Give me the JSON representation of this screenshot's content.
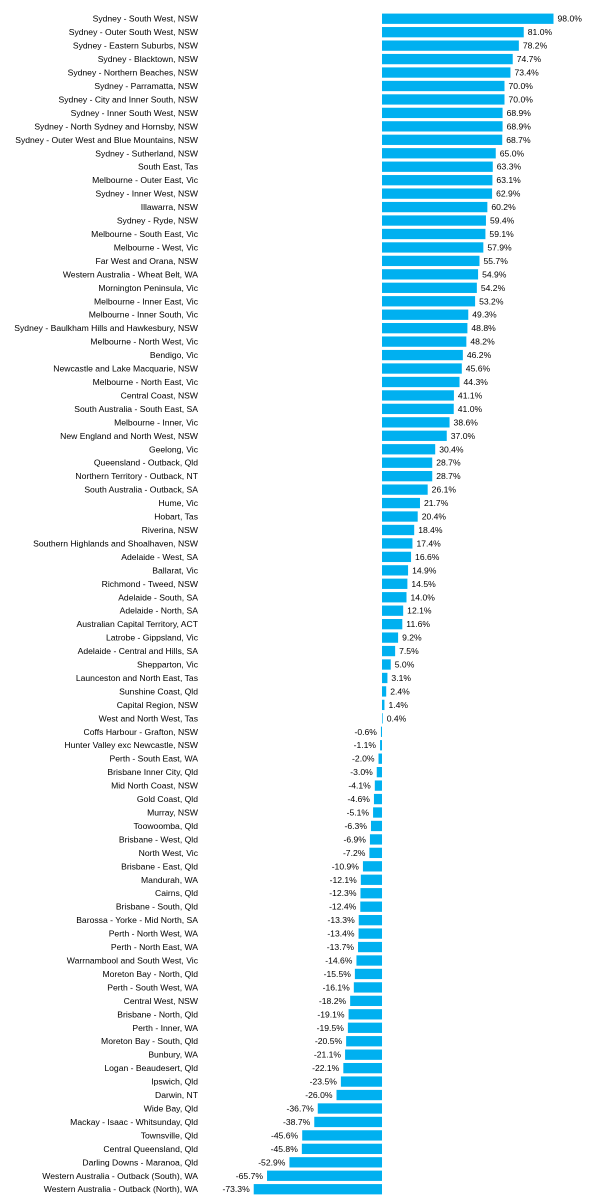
{
  "chart_data": {
    "type": "bar",
    "orientation": "horizontal",
    "bar_color": "#00B0F0",
    "value_suffix": "%",
    "grid": false,
    "legend": "none",
    "xlim": [
      -73.3,
      98.0
    ],
    "categories": [
      "Sydney - South West, NSW",
      "Sydney - Outer South West, NSW",
      "Sydney - Eastern Suburbs, NSW",
      "Sydney - Blacktown, NSW",
      "Sydney - Northern Beaches, NSW",
      "Sydney - Parramatta, NSW",
      "Sydney - City and Inner South, NSW",
      "Sydney - Inner South West, NSW",
      "Sydney - North Sydney and Hornsby, NSW",
      "Sydney - Outer West and Blue Mountains, NSW",
      "Sydney - Sutherland, NSW",
      "South East, Tas",
      "Melbourne - Outer East, Vic",
      "Sydney - Inner West, NSW",
      "Illawarra, NSW",
      "Sydney - Ryde, NSW",
      "Melbourne - South East, Vic",
      "Melbourne - West, Vic",
      "Far West and Orana, NSW",
      "Western Australia - Wheat Belt, WA",
      "Mornington Peninsula, Vic",
      "Melbourne - Inner East, Vic",
      "Melbourne - Inner South, Vic",
      "Sydney - Baulkham Hills and Hawkesbury, NSW",
      "Melbourne - North West, Vic",
      "Bendigo, Vic",
      "Newcastle and Lake Macquarie, NSW",
      "Melbourne - North East, Vic",
      "Central Coast, NSW",
      "South Australia - South East, SA",
      "Melbourne - Inner, Vic",
      "New England and North West, NSW",
      "Geelong, Vic",
      "Queensland - Outback, Qld",
      "Northern Territory - Outback, NT",
      "South Australia - Outback, SA",
      "Hume, Vic",
      "Hobart, Tas",
      "Riverina, NSW",
      "Southern Highlands and Shoalhaven, NSW",
      "Adelaide - West, SA",
      "Ballarat, Vic",
      "Richmond - Tweed, NSW",
      "Adelaide - South, SA",
      "Adelaide - North, SA",
      "Australian Capital Territory, ACT",
      "Latrobe - Gippsland, Vic",
      "Adelaide - Central and Hills, SA",
      "Shepparton, Vic",
      "Launceston and North East, Tas",
      "Sunshine Coast, Qld",
      "Capital Region, NSW",
      "West and North West, Tas",
      "Coffs Harbour - Grafton, NSW",
      "Hunter Valley exc Newcastle, NSW",
      "Perth - South East, WA",
      "Brisbane Inner City, Qld",
      "Mid North Coast, NSW",
      "Gold Coast, Qld",
      "Murray, NSW",
      "Toowoomba, Qld",
      "Brisbane - West, Qld",
      "North West, Vic",
      "Brisbane - East, Qld",
      "Mandurah, WA",
      "Cairns, Qld",
      "Brisbane - South, Qld",
      "Barossa - Yorke - Mid North, SA",
      "Perth - North West, WA",
      "Perth - North East, WA",
      "Warrnambool and South West, Vic",
      "Moreton Bay - North, Qld",
      "Perth - South West, WA",
      "Central West, NSW",
      "Brisbane - North, Qld",
      "Perth - Inner, WA",
      "Moreton Bay - South, Qld",
      "Bunbury, WA",
      "Logan - Beaudesert, Qld",
      "Ipswich, Qld",
      "Darwin, NT",
      "Wide Bay, Qld",
      "Mackay - Isaac - Whitsunday, Qld",
      "Townsville, Qld",
      "Central Queensland, Qld",
      "Darling Downs - Maranoa, Qld",
      "Western Australia - Outback (South), WA",
      "Western Australia - Outback (North), WA"
    ],
    "values": [
      98.0,
      81.0,
      78.2,
      74.7,
      73.4,
      70.0,
      70.0,
      68.9,
      68.9,
      68.7,
      65.0,
      63.3,
      63.1,
      62.9,
      60.2,
      59.4,
      59.1,
      57.9,
      55.7,
      54.9,
      54.2,
      53.2,
      49.3,
      48.8,
      48.2,
      46.2,
      45.6,
      44.3,
      41.1,
      41.0,
      38.6,
      37.0,
      30.4,
      28.7,
      28.7,
      26.1,
      21.7,
      20.4,
      18.4,
      17.4,
      16.6,
      14.9,
      14.5,
      14.0,
      12.1,
      11.6,
      9.2,
      7.5,
      5.0,
      3.1,
      2.4,
      1.4,
      0.4,
      -0.6,
      -1.1,
      -2.0,
      -3.0,
      -4.1,
      -4.6,
      -5.1,
      -6.3,
      -6.9,
      -7.2,
      -10.9,
      -12.1,
      -12.3,
      -12.4,
      -13.3,
      -13.4,
      -13.7,
      -14.6,
      -15.5,
      -16.1,
      -18.2,
      -19.1,
      -19.5,
      -20.5,
      -21.1,
      -22.1,
      -23.5,
      -26.0,
      -36.7,
      -38.7,
      -45.6,
      -45.8,
      -52.9,
      -65.7,
      -73.3
    ],
    "value_labels": [
      "98.0%",
      "81.0%",
      "78.2%",
      "74.7%",
      "73.4%",
      "70.0%",
      "70.0%",
      "68.9%",
      "68.9%",
      "68.7%",
      "65.0%",
      "63.3%",
      "63.1%",
      "62.9%",
      "60.2%",
      "59.4%",
      "59.1%",
      "57.9%",
      "55.7%",
      "54.9%",
      "54.2%",
      "53.2%",
      "49.3%",
      "48.8%",
      "48.2%",
      "46.2%",
      "45.6%",
      "44.3%",
      "41.1%",
      "41.0%",
      "38.6%",
      "37.0%",
      "30.4%",
      "28.7%",
      "28.7%",
      "26.1%",
      "21.7%",
      "20.4%",
      "18.4%",
      "17.4%",
      "16.6%",
      "14.9%",
      "14.5%",
      "14.0%",
      "12.1%",
      "11.6%",
      "9.2%",
      "7.5%",
      "5.0%",
      "3.1%",
      "2.4%",
      "1.4%",
      "0.4%",
      "-0.6%",
      "-1.1%",
      "-2.0%",
      "-3.0%",
      "-4.1%",
      "-4.6%",
      "-5.1%",
      "-6.3%",
      "-6.9%",
      "-7.2%",
      "-10.9%",
      "-12.1%",
      "-12.3%",
      "-12.4%",
      "-13.3%",
      "-13.4%",
      "-13.7%",
      "-14.6%",
      "-15.5%",
      "-16.1%",
      "-18.2%",
      "-19.1%",
      "-19.5%",
      "-20.5%",
      "-21.1%",
      "-22.1%",
      "-23.5%",
      "-26.0%",
      "-36.7%",
      "-38.7%",
      "-45.6%",
      "-45.8%",
      "-52.9%",
      "-65.7%",
      "-73.3%"
    ]
  }
}
